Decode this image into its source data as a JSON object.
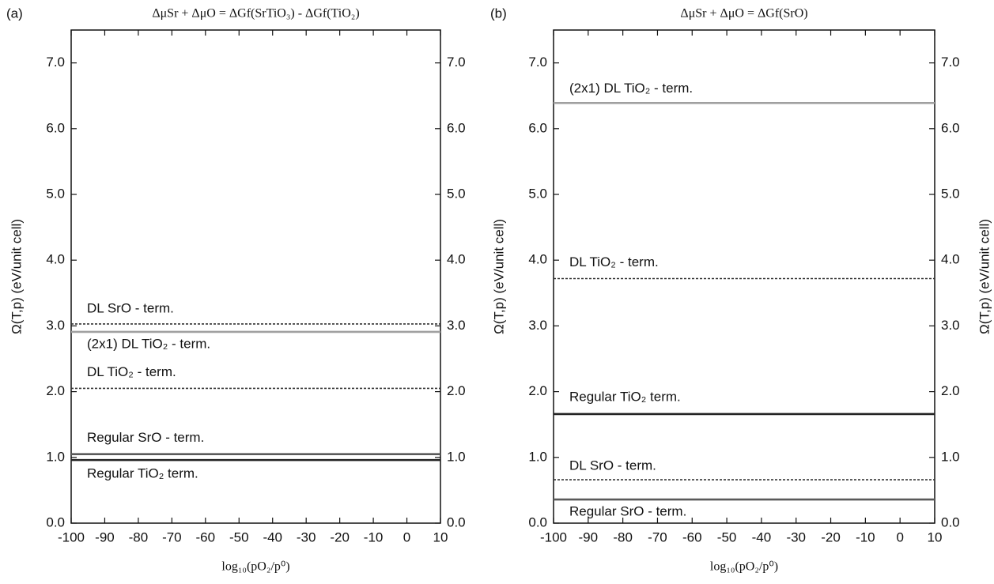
{
  "chart_data": [
    {
      "type": "line",
      "panel_label": "(a)",
      "title": "ΔμSr + ΔμO = ΔGf(SrTiO₃) - ΔGf(TiO₂)",
      "x_label": "log₁₀(pO₂/p⁰)",
      "y_label": "Ω(T,p) (eV/unit cell)",
      "x": [
        -100,
        10
      ],
      "xlim": [
        -100,
        10
      ],
      "xticks": [
        -100,
        -90,
        -80,
        -70,
        -60,
        -50,
        -40,
        -30,
        -20,
        -10,
        0,
        10
      ],
      "ylim": [
        0,
        7.5
      ],
      "yticks": [
        {
          "value": 0,
          "label": "0.0"
        },
        {
          "value": 1,
          "label": "1.0"
        },
        {
          "value": 2,
          "label": "2.0"
        },
        {
          "value": 3,
          "label": "3.0"
        },
        {
          "value": 4,
          "label": "4.0"
        },
        {
          "value": 5,
          "label": "5.0"
        },
        {
          "value": 6,
          "label": "6.0"
        },
        {
          "value": 7,
          "label": "7.0"
        }
      ],
      "series": [
        {
          "name": "DL SrO - term.",
          "color": "#333333",
          "style": "dashed",
          "values": [
            3.03,
            3.03
          ]
        },
        {
          "name": "(2x1) DL TiO₂ - term.",
          "color": "#a0a0a0",
          "style": "solid",
          "values": [
            2.91,
            2.91
          ]
        },
        {
          "name": "DL TiO₂ - term.",
          "color": "#333333",
          "style": "dashed",
          "values": [
            2.05,
            2.05
          ]
        },
        {
          "name": "Regular SrO - term.",
          "color": "#5a5a5a",
          "style": "solid",
          "values": [
            1.05,
            1.05
          ]
        },
        {
          "name": "Regular TiO₂ term.",
          "color": "#222222",
          "style": "solid",
          "values": [
            0.96,
            0.96
          ]
        }
      ]
    },
    {
      "type": "line",
      "panel_label": "(b)",
      "title": "ΔμSr + ΔμO = ΔGf(SrO)",
      "x_label": "log₁₀(pO₂/p⁰)",
      "y_label": "Ω(T,p) (eV/unit cell)",
      "y2_label": "Ω(T,p) (eV/unit cell)",
      "x": [
        -100,
        10
      ],
      "xlim": [
        -100,
        10
      ],
      "xticks": [
        -100,
        -90,
        -80,
        -70,
        -60,
        -50,
        -40,
        -30,
        -20,
        -10,
        0,
        10
      ],
      "ylim": [
        0,
        7.5
      ],
      "yticks": [
        {
          "value": 0,
          "label": "0.0"
        },
        {
          "value": 1,
          "label": "1.0"
        },
        {
          "value": 2,
          "label": "2.0"
        },
        {
          "value": 3,
          "label": "3.0"
        },
        {
          "value": 4,
          "label": "4.0"
        },
        {
          "value": 5,
          "label": "5.0"
        },
        {
          "value": 6,
          "label": "6.0"
        },
        {
          "value": 7,
          "label": "7.0"
        }
      ],
      "series": [
        {
          "name": "(2x1) DL TiO₂ - term.",
          "color": "#a0a0a0",
          "style": "solid",
          "values": [
            6.39,
            6.39
          ]
        },
        {
          "name": "DL TiO₂ - term.",
          "color": "#333333",
          "style": "dashed",
          "values": [
            3.72,
            3.72
          ]
        },
        {
          "name": "Regular TiO₂ term.",
          "color": "#222222",
          "style": "solid",
          "values": [
            1.66,
            1.66
          ]
        },
        {
          "name": "DL SrO - term.",
          "color": "#333333",
          "style": "dashed",
          "values": [
            0.66,
            0.66
          ]
        },
        {
          "name": "Regular SrO - term.",
          "color": "#5a5a5a",
          "style": "solid",
          "values": [
            0.36,
            0.36
          ]
        }
      ]
    }
  ]
}
